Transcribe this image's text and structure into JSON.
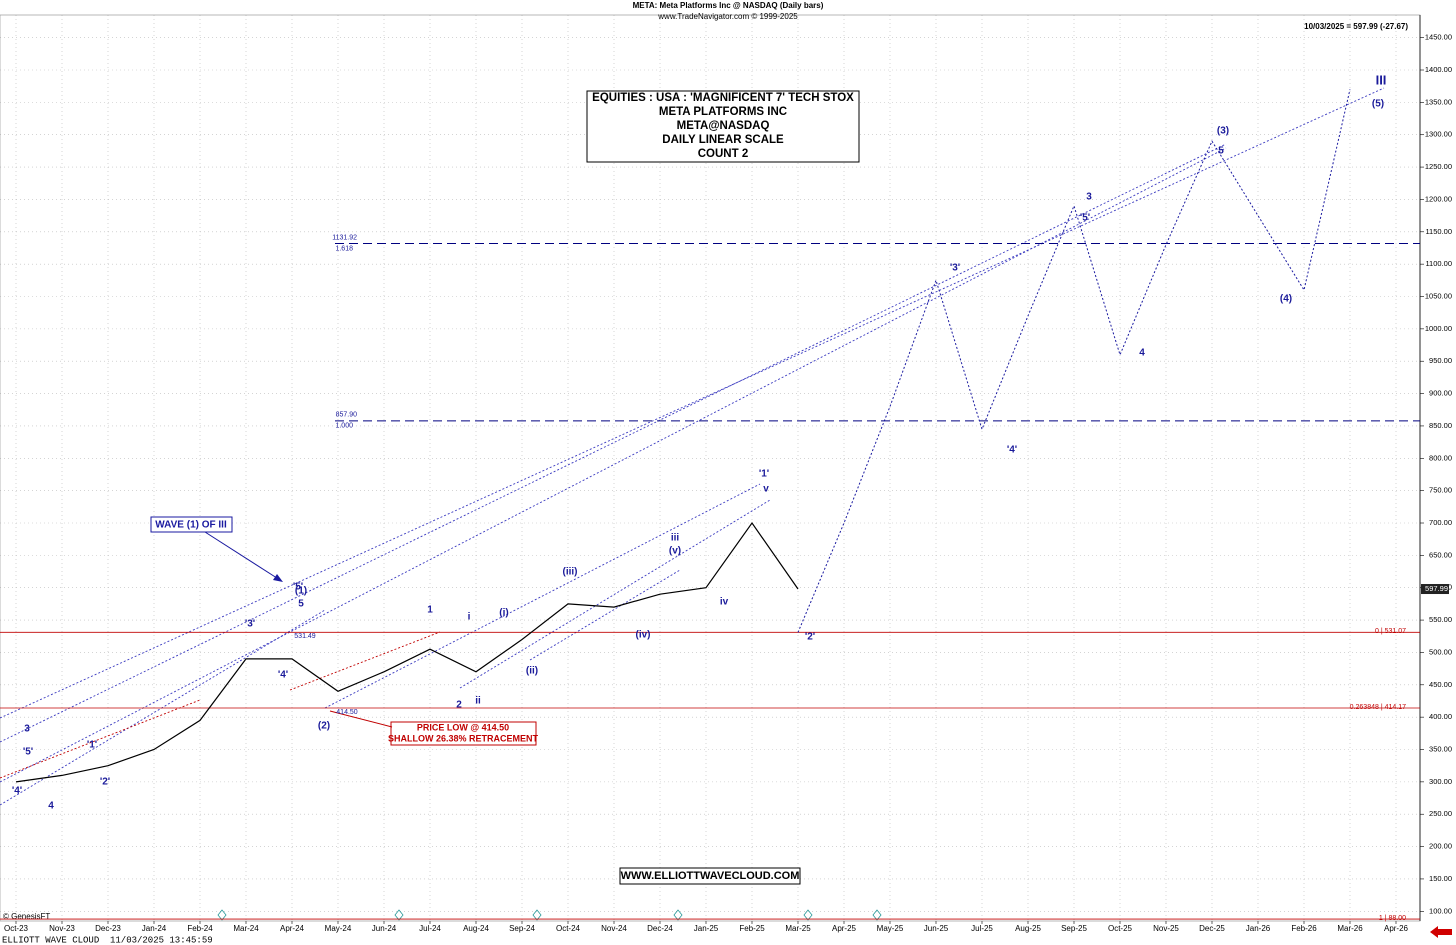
{
  "chart_data": {
    "type": "line",
    "title": "META:  Meta Platforms Inc @ NASDAQ  (Daily bars)",
    "subtitle": "www.TradeNavigator.com © 1999-2025",
    "last_quote": "10/03/2025 = 597.99 (-27.67)",
    "last_price": 597.99,
    "info_box": [
      "EQUITIES : USA : 'MAGNIFICENT 7' TECH STOX",
      "META PLATFORMS INC",
      "META@NASDAQ",
      "DAILY LINEAR SCALE",
      "COUNT 2"
    ],
    "categories": [
      "Oct-23",
      "Nov-23",
      "Dec-23",
      "Jan-24",
      "Feb-24",
      "Mar-24",
      "Apr-24",
      "May-24",
      "Jun-24",
      "Jul-24",
      "Aug-24",
      "Sep-24",
      "Oct-24",
      "Nov-24",
      "Dec-24",
      "Jan-25",
      "Feb-25",
      "Mar-25",
      "Apr-25",
      "May-25",
      "Jun-25",
      "Jul-25",
      "Aug-25",
      "Sep-25",
      "Oct-25",
      "Nov-25",
      "Dec-25",
      "Jan-26",
      "Feb-26",
      "Mar-26",
      "Apr-26"
    ],
    "series": [
      {
        "name": "META",
        "color": "#000000",
        "dash": false,
        "values": [
          300,
          310,
          325,
          350,
          395,
          490,
          490,
          440,
          470,
          505,
          470,
          520,
          575,
          570,
          590,
          600,
          700,
          598,
          null,
          null,
          null,
          null,
          null,
          null,
          null,
          null,
          null,
          null,
          null,
          null,
          null
        ]
      },
      {
        "name": "Projection",
        "color": "#1a1aa0",
        "dash": true,
        "values": [
          null,
          null,
          null,
          null,
          null,
          null,
          null,
          null,
          null,
          null,
          null,
          null,
          null,
          null,
          null,
          null,
          null,
          531,
          700,
          880,
          1075,
          845,
          1020,
          1190,
          960,
          1130,
          1290,
          1175,
          1060,
          1370,
          null
        ]
      }
    ],
    "levels": [
      {
        "value": 1131.92,
        "label": "1131.92",
        "ratio": "1.618",
        "color": "#000080",
        "dash": true
      },
      {
        "value": 857.9,
        "label": "857.90",
        "ratio": "1.000",
        "color": "#000080",
        "dash": true
      },
      {
        "value": 531.07,
        "label": "0 | 531.07",
        "color": "#c00000",
        "dash": false
      },
      {
        "value": 414.17,
        "label": "0.263848 | 414.17",
        "color": "#c00000",
        "dash": false
      },
      {
        "value": 88.0,
        "label": "1 | 88.00",
        "color": "#c00000",
        "dash": false
      }
    ],
    "ylim": [
      85,
      1485
    ],
    "yticks": [
      {
        "value": 1450,
        "label": "1450.00"
      },
      {
        "value": 1400,
        "label": "1400.00"
      },
      {
        "value": 1350,
        "label": "1350.00"
      },
      {
        "value": 1300,
        "label": "1300.00"
      },
      {
        "value": 1250,
        "label": "1250.00"
      },
      {
        "value": 1200,
        "label": "1200.00"
      },
      {
        "value": 1150,
        "label": "1150.00"
      },
      {
        "value": 1100,
        "label": "1100.00"
      },
      {
        "value": 1050,
        "label": "1050.00"
      },
      {
        "value": 1000,
        "label": "1000.00"
      },
      {
        "value": 950,
        "label": "950.00"
      },
      {
        "value": 900,
        "label": "900.00"
      },
      {
        "value": 850,
        "label": "850.00"
      },
      {
        "value": 800,
        "label": "800.00"
      },
      {
        "value": 750,
        "label": "750.00"
      },
      {
        "value": 700,
        "label": "700.00"
      },
      {
        "value": 650,
        "label": "650.00"
      },
      {
        "value": 600,
        "label": "600.00"
      },
      {
        "value": 550,
        "label": "550.00"
      },
      {
        "value": 500,
        "label": "500.00"
      },
      {
        "value": 450,
        "label": "450.00"
      },
      {
        "value": 400,
        "label": "400.00"
      },
      {
        "value": 350,
        "label": "350.00"
      },
      {
        "value": 300,
        "label": "300.00"
      },
      {
        "value": 250,
        "label": "250.00"
      },
      {
        "value": 200,
        "label": "200.00"
      },
      {
        "value": 150,
        "label": "150.00"
      },
      {
        "value": 100,
        "label": "100.00"
      }
    ],
    "grid": true,
    "wave_labels": [
      "3",
      "'5'",
      "'4'",
      "4",
      "'1'",
      "'2'",
      "'3'",
      "'4'",
      "'5'",
      "5",
      "(1)",
      "(2)",
      "1",
      "2",
      "i",
      "ii",
      "(i)",
      "(ii)",
      "(iii)",
      "(iv)",
      "iii",
      "(v)",
      "iv",
      "v",
      "'1'",
      "'2'",
      "'3'",
      "'4'",
      "3",
      "'5'",
      "4",
      "(3)",
      "5",
      "(4)",
      "(5)",
      "III"
    ],
    "point_labels": [
      "531.49",
      "414.50"
    ],
    "wave_callout": "WAVE (1) OF III",
    "low_callout": [
      "PRICE LOW @ 414.50",
      "SHALLOW 26.38% RETRACEMENT"
    ],
    "website": "WWW.ELLIOTTWAVECLOUD.COM",
    "copyright": "© GenesisFT",
    "footer": "ELLIOTT WAVE CLOUD",
    "timestamp": "11/03/2025 13:45:59"
  }
}
